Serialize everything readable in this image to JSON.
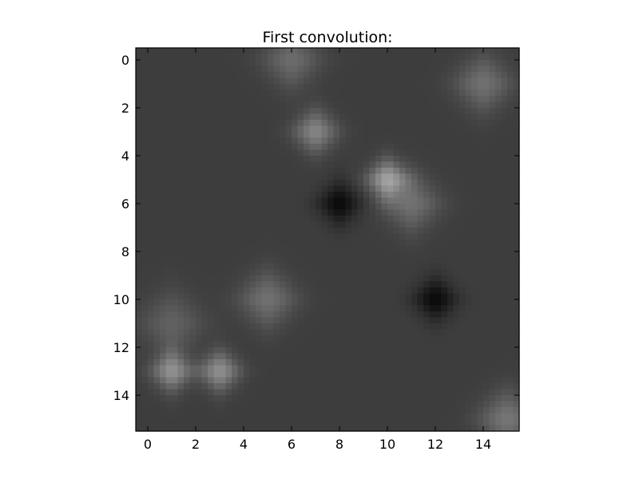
{
  "chart_data": {
    "type": "heatmap",
    "title": "First convolution:",
    "xlabel": "",
    "ylabel": "",
    "colormap": "gray",
    "colors": {
      "background_gray": "#3d3d3d",
      "axes_frame": "#000000"
    },
    "grid_size": [
      16,
      16
    ],
    "xlim": [
      -0.5,
      15.5
    ],
    "ylim": [
      15.5,
      -0.5
    ],
    "x_ticks": [
      0,
      2,
      4,
      6,
      8,
      10,
      12,
      14
    ],
    "y_ticks": [
      0,
      2,
      4,
      6,
      8,
      10,
      12,
      14
    ],
    "x_tick_labels": [
      "0",
      "2",
      "4",
      "6",
      "8",
      "10",
      "12",
      "14"
    ],
    "y_tick_labels": [
      "0",
      "2",
      "4",
      "6",
      "8",
      "10",
      "12",
      "14"
    ],
    "baseline_intensity": 0.24,
    "features": [
      {
        "x": 6,
        "y": 0,
        "kind": "bright",
        "strength": 0.18,
        "spread": 0.85
      },
      {
        "x": 14,
        "y": 1,
        "kind": "bright",
        "strength": 0.2,
        "spread": 0.85
      },
      {
        "x": 7,
        "y": 3,
        "kind": "bright",
        "strength": 0.28,
        "spread": 0.65
      },
      {
        "x": 10,
        "y": 5,
        "kind": "bright",
        "strength": 0.38,
        "spread": 0.6
      },
      {
        "x": 11,
        "y": 6,
        "kind": "bright",
        "strength": 0.2,
        "spread": 0.85
      },
      {
        "x": 8,
        "y": 6,
        "kind": "dark",
        "strength": 0.2,
        "spread": 0.65
      },
      {
        "x": 12,
        "y": 10,
        "kind": "dark",
        "strength": 0.2,
        "spread": 0.65
      },
      {
        "x": 5,
        "y": 10,
        "kind": "bright",
        "strength": 0.2,
        "spread": 0.85
      },
      {
        "x": 1,
        "y": 11,
        "kind": "bright",
        "strength": 0.14,
        "spread": 0.95
      },
      {
        "x": 1,
        "y": 13,
        "kind": "bright",
        "strength": 0.32,
        "spread": 0.6
      },
      {
        "x": 3,
        "y": 13,
        "kind": "bright",
        "strength": 0.32,
        "spread": 0.6
      },
      {
        "x": 15,
        "y": 15,
        "kind": "bright",
        "strength": 0.22,
        "spread": 0.85
      }
    ]
  }
}
